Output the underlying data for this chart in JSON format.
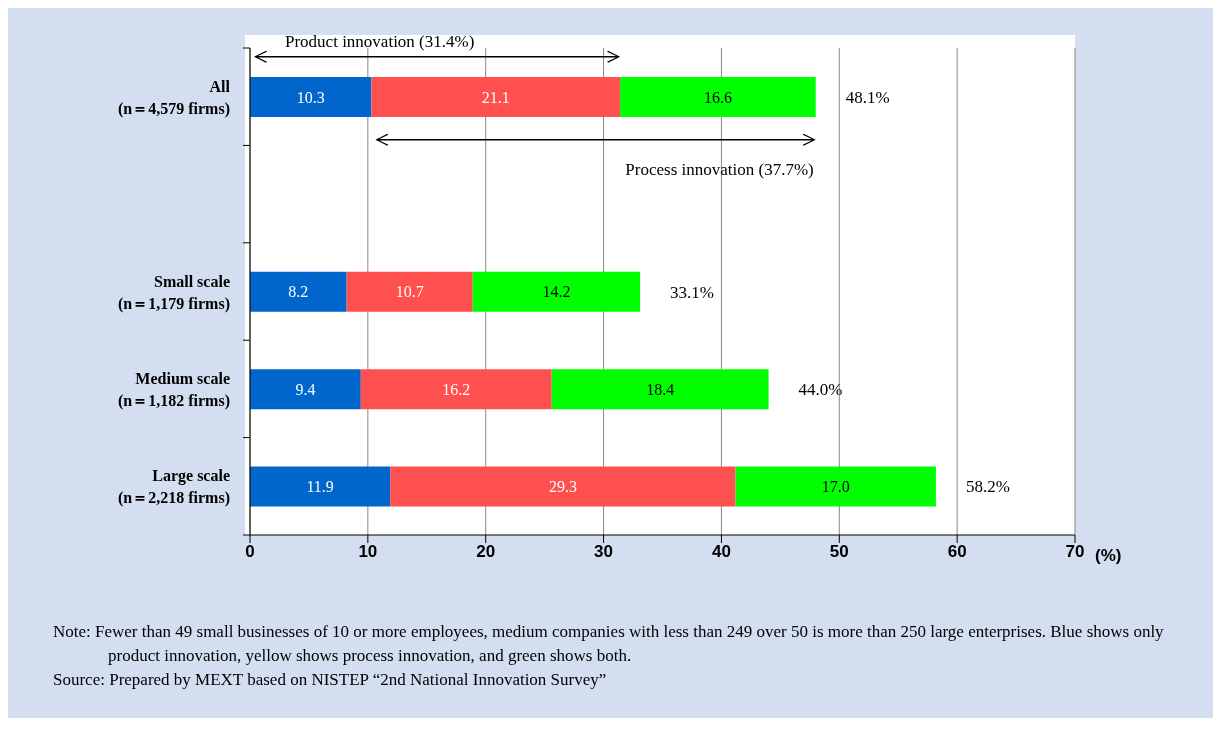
{
  "chart_data": {
    "type": "bar",
    "orientation": "horizontal",
    "stacked": true,
    "categories": [
      "All\n(n＝4,579 firms)",
      null,
      "Small scale\n(n＝1,179 firms)",
      "Medium scale\n(n＝1,182 firms)",
      "Large scale\n(n＝2,218 firms)"
    ],
    "series": [
      {
        "color": "#0066cc",
        "values": [
          10.3,
          null,
          8.2,
          9.4,
          11.9
        ]
      },
      {
        "color": "#ff5050",
        "values": [
          21.1,
          null,
          10.7,
          16.2,
          29.3
        ]
      },
      {
        "color": "#00ff00",
        "values": [
          16.6,
          null,
          14.2,
          18.4,
          17.0
        ],
        "value_labels": [
          "16.6",
          null,
          "14.2",
          "18.4",
          "17.0"
        ]
      }
    ],
    "totals": [
      "48.1%",
      null,
      "33.1%",
      "44.0%",
      "58.2%"
    ],
    "data_labels": true,
    "xlim": [
      0,
      70
    ],
    "xticks": [
      0,
      10,
      20,
      30,
      40,
      50,
      60,
      70
    ],
    "xlabel": "(%)",
    "grid": "x",
    "annotations": [
      "Product innovation (31.4%)",
      "Process innovation (37.7%)",
      "Note: Fewer than 49 small businesses of 10 or more employees, medium companies with less than 249 over 50 is more than 250 large enterprises. Blue shows only product innovation, yellow shows process innovation, and green shows both.",
      "Source: Prepared by MEXT based on NISTEP “2nd National Innovation Survey”"
    ]
  }
}
